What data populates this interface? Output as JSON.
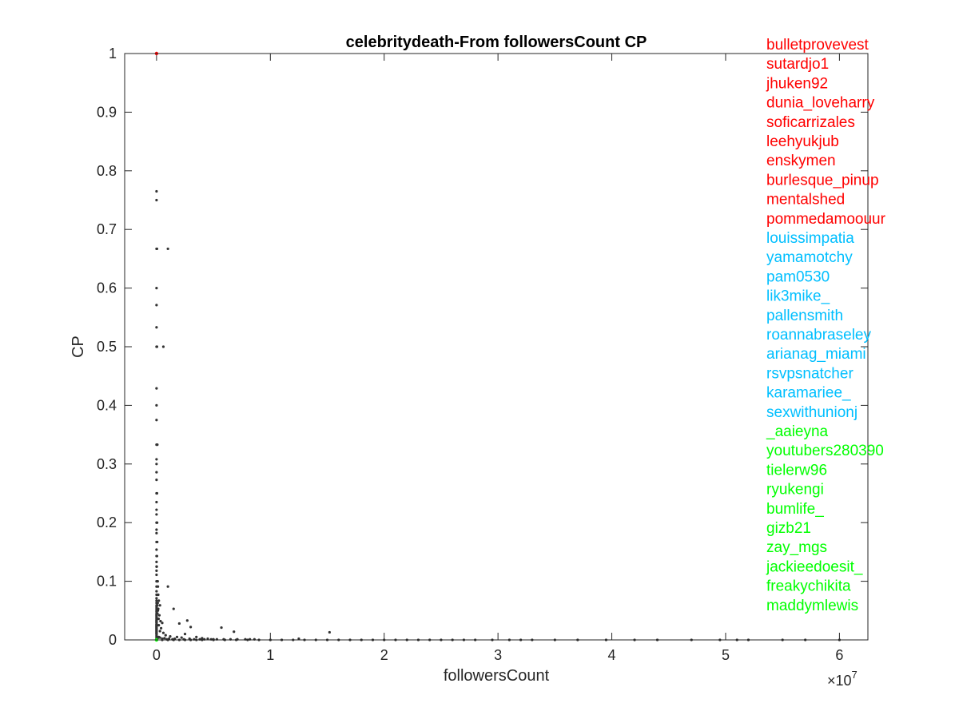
{
  "chart_data": {
    "type": "scatter",
    "title": "celebritydeath-From followersCount CP",
    "xlabel": "followersCount",
    "ylabel": "CP",
    "x_exponent_label": "×10",
    "x_exponent": "7",
    "xlim": [
      -2800000,
      62500000
    ],
    "ylim": [
      0,
      1
    ],
    "x_ticks": [
      0,
      10000000,
      20000000,
      30000000,
      40000000,
      50000000,
      60000000
    ],
    "x_tick_labels": [
      "0",
      "1",
      "2",
      "3",
      "4",
      "5",
      "6"
    ],
    "y_ticks": [
      0,
      0.1,
      0.2,
      0.3,
      0.4,
      0.5,
      0.6,
      0.7,
      0.8,
      0.9,
      1
    ],
    "y_tick_labels": [
      "0",
      "0.1",
      "0.2",
      "0.3",
      "0.4",
      "0.5",
      "0.6",
      "0.7",
      "0.8",
      "0.9",
      "1"
    ],
    "grid": false,
    "colors": {
      "points": "#333333",
      "top": "#ff0000",
      "mid": "#00bfff",
      "bottom": "#00ff00",
      "axis": "#262626"
    },
    "series": [
      {
        "points": [
          [
            0,
            0.765
          ],
          [
            0,
            0.75
          ],
          [
            0,
            0.667
          ],
          [
            40000,
            0.667
          ],
          [
            1000000,
            0.667
          ],
          [
            0,
            0.6
          ],
          [
            0,
            0.571
          ],
          [
            0,
            0.533
          ],
          [
            0,
            0.5
          ],
          [
            40000,
            0.5
          ],
          [
            600000,
            0.5
          ],
          [
            0,
            0.429
          ],
          [
            0,
            0.4
          ],
          [
            0,
            0.375
          ],
          [
            0,
            0.333
          ],
          [
            30000,
            0.333
          ],
          [
            70000,
            0.333
          ],
          [
            0,
            0.308
          ],
          [
            0,
            0.3
          ],
          [
            0,
            0.286
          ],
          [
            0,
            0.273
          ],
          [
            0,
            0.25
          ],
          [
            40000,
            0.25
          ],
          [
            0,
            0.235
          ],
          [
            0,
            0.222
          ],
          [
            0,
            0.214
          ],
          [
            0,
            0.2
          ],
          [
            50000,
            0.2
          ],
          [
            0,
            0.188
          ],
          [
            0,
            0.182
          ],
          [
            0,
            0.167
          ],
          [
            60000,
            0.167
          ],
          [
            0,
            0.154
          ],
          [
            0,
            0.143
          ],
          [
            40000,
            0.143
          ],
          [
            0,
            0.133
          ],
          [
            0,
            0.125
          ],
          [
            20000,
            0.125
          ],
          [
            0,
            0.118
          ],
          [
            0,
            0.111
          ],
          [
            0,
            0.1
          ],
          [
            60000,
            0.1
          ],
          [
            100000,
            0.1
          ],
          [
            0,
            0.091
          ],
          [
            120000,
            0.091
          ],
          [
            0,
            0.083
          ],
          [
            0,
            0.077
          ],
          [
            80000,
            0.077
          ],
          [
            150000,
            0.077
          ],
          [
            0,
            0.071
          ],
          [
            0,
            0.067
          ],
          [
            200000,
            0.067
          ],
          [
            0,
            0.063
          ],
          [
            100000,
            0.063
          ],
          [
            0,
            0.059
          ],
          [
            60000,
            0.059
          ],
          [
            300000,
            0.059
          ],
          [
            0,
            0.056
          ],
          [
            0,
            0.053
          ],
          [
            150000,
            0.053
          ],
          [
            0,
            0.05
          ],
          [
            120000,
            0.05
          ],
          [
            1000000,
            0.091
          ],
          [
            1500000,
            0.053
          ],
          [
            0,
            0.048
          ],
          [
            0,
            0.045
          ],
          [
            80000,
            0.045
          ],
          [
            0,
            0.043
          ],
          [
            0,
            0.042
          ],
          [
            250000,
            0.042
          ],
          [
            0,
            0.04
          ],
          [
            0,
            0.038
          ],
          [
            0,
            0.036
          ],
          [
            180000,
            0.036
          ],
          [
            0,
            0.034
          ],
          [
            0,
            0.033
          ],
          [
            0,
            0.032
          ],
          [
            350000,
            0.032
          ],
          [
            0,
            0.031
          ],
          [
            0,
            0.03
          ],
          [
            0,
            0.029
          ],
          [
            500000,
            0.029
          ],
          [
            0,
            0.027
          ],
          [
            0,
            0.026
          ],
          [
            0,
            0.025
          ],
          [
            200000,
            0.025
          ],
          [
            0,
            0.024
          ],
          [
            0,
            0.023
          ],
          [
            0,
            0.022
          ],
          [
            0,
            0.021
          ],
          [
            0,
            0.02
          ],
          [
            400000,
            0.02
          ],
          [
            0,
            0.019
          ],
          [
            0,
            0.018
          ],
          [
            0,
            0.017
          ],
          [
            0,
            0.016
          ],
          [
            0,
            0.015
          ],
          [
            300000,
            0.015
          ],
          [
            0,
            0.014
          ],
          [
            0,
            0.013
          ],
          [
            0,
            0.012
          ],
          [
            600000,
            0.012
          ],
          [
            0,
            0.011
          ],
          [
            0,
            0.01
          ],
          [
            2000000,
            0.028
          ],
          [
            2700000,
            0.033
          ],
          [
            3000000,
            0.022
          ],
          [
            5700000,
            0.021
          ],
          [
            6800000,
            0.014
          ],
          [
            2500000,
            0.01
          ],
          [
            800000,
            0.008
          ],
          [
            1200000,
            0.006
          ],
          [
            1800000,
            0.005
          ],
          [
            2200000,
            0.004
          ],
          [
            3500000,
            0.005
          ],
          [
            4000000,
            0.003
          ],
          [
            15200000,
            0.013
          ],
          [
            12500000,
            0.002
          ],
          [
            8200000,
            0.001
          ],
          [
            4500000,
            0.002
          ],
          [
            5000000,
            0.001
          ],
          [
            0,
            0.008
          ],
          [
            0,
            0.006
          ],
          [
            0,
            0.004
          ],
          [
            0,
            0.002
          ],
          [
            0,
            0.001
          ],
          [
            100000,
            0.003
          ],
          [
            200000,
            0.005
          ],
          [
            300000,
            0.004
          ],
          [
            500000,
            0.002
          ],
          [
            700000,
            0.003
          ],
          [
            900000,
            0.001
          ],
          [
            1100000,
            0.002
          ],
          [
            1400000,
            0.001
          ],
          [
            1600000,
            0.002
          ],
          [
            2400000,
            0.001
          ],
          [
            2900000,
            0.002
          ],
          [
            3300000,
            0.001
          ],
          [
            3800000,
            0.001
          ],
          [
            4200000,
            0.001
          ],
          [
            4800000,
            0.001
          ],
          [
            5300000,
            0.001
          ],
          [
            5900000,
            0.001
          ],
          [
            6500000,
            0.001
          ],
          [
            7100000,
            0.001
          ],
          [
            7800000,
            0.001
          ],
          [
            8600000,
            0.001
          ],
          [
            0,
            0
          ],
          [
            500000,
            0
          ],
          [
            1000000,
            0
          ],
          [
            1500000,
            0
          ],
          [
            2000000,
            0
          ],
          [
            2500000,
            0
          ],
          [
            3000000,
            0
          ],
          [
            3500000,
            0
          ],
          [
            4000000,
            0
          ],
          [
            5000000,
            0
          ],
          [
            6000000,
            0
          ],
          [
            7000000,
            0
          ],
          [
            8000000,
            0
          ],
          [
            9000000,
            0
          ],
          [
            10000000,
            0
          ],
          [
            11000000,
            0
          ],
          [
            12000000,
            0
          ],
          [
            13000000,
            0
          ],
          [
            14000000,
            0
          ],
          [
            15000000,
            0
          ],
          [
            16000000,
            0
          ],
          [
            17000000,
            0
          ],
          [
            18000000,
            0
          ],
          [
            19000000,
            0
          ],
          [
            20000000,
            0
          ],
          [
            21000000,
            0
          ],
          [
            22000000,
            0
          ],
          [
            23000000,
            0
          ],
          [
            24000000,
            0
          ],
          [
            25000000,
            0
          ],
          [
            26000000,
            0
          ],
          [
            27000000,
            0
          ],
          [
            28000000,
            0
          ],
          [
            29500000,
            0
          ],
          [
            31000000,
            0
          ],
          [
            32000000,
            0
          ],
          [
            33000000,
            0
          ],
          [
            35000000,
            0
          ],
          [
            37000000,
            0
          ],
          [
            39500000,
            0
          ],
          [
            42000000,
            0
          ],
          [
            44000000,
            0
          ],
          [
            47000000,
            0
          ],
          [
            49500000,
            0
          ],
          [
            51000000,
            0
          ],
          [
            52000000,
            0
          ],
          [
            55000000,
            0
          ],
          [
            57000000,
            0
          ],
          [
            60000000,
            0
          ]
        ]
      }
    ],
    "highlight_points": [
      {
        "x": 0,
        "y": 1,
        "color": "#ff0000"
      },
      {
        "x": 0,
        "y": 0,
        "color": "#00ff00"
      }
    ],
    "legend_names": [
      {
        "name": "bulletprovevest",
        "color": "#ff0000"
      },
      {
        "name": "sutardjo1",
        "color": "#ff0000"
      },
      {
        "name": "jhuken92",
        "color": "#ff0000"
      },
      {
        "name": "dunia_loveharry",
        "color": "#ff0000"
      },
      {
        "name": "soficarrizales",
        "color": "#ff0000"
      },
      {
        "name": "leehyukjub",
        "color": "#ff0000"
      },
      {
        "name": "enskymen",
        "color": "#ff0000"
      },
      {
        "name": "burlesque_pinup",
        "color": "#ff0000"
      },
      {
        "name": "mentalshed",
        "color": "#ff0000"
      },
      {
        "name": "pommedamoouur",
        "color": "#ff0000"
      },
      {
        "name": "louissimpatia",
        "color": "#00bfff"
      },
      {
        "name": "yamamotchy",
        "color": "#00bfff"
      },
      {
        "name": "pam0530",
        "color": "#00bfff"
      },
      {
        "name": "lik3mike_",
        "color": "#00bfff"
      },
      {
        "name": "pallensmith",
        "color": "#00bfff"
      },
      {
        "name": "roannabraseley",
        "color": "#00bfff"
      },
      {
        "name": "arianag_miami",
        "color": "#00bfff"
      },
      {
        "name": "rsvpsnatcher",
        "color": "#00bfff"
      },
      {
        "name": "karamariee_",
        "color": "#00bfff"
      },
      {
        "name": "sexwithunionj",
        "color": "#00bfff"
      },
      {
        "name": "_aaieyna",
        "color": "#00ff00"
      },
      {
        "name": "youtubers280390",
        "color": "#00ff00"
      },
      {
        "name": "tielerw96",
        "color": "#00ff00"
      },
      {
        "name": "ryukengi",
        "color": "#00ff00"
      },
      {
        "name": "bumlife_",
        "color": "#00ff00"
      },
      {
        "name": "gizb21",
        "color": "#00ff00"
      },
      {
        "name": "zay_mgs",
        "color": "#00ff00"
      },
      {
        "name": "jackieedoesit_",
        "color": "#00ff00"
      },
      {
        "name": "freakychikita",
        "color": "#00ff00"
      },
      {
        "name": "maddymlewis",
        "color": "#00ff00"
      }
    ]
  }
}
